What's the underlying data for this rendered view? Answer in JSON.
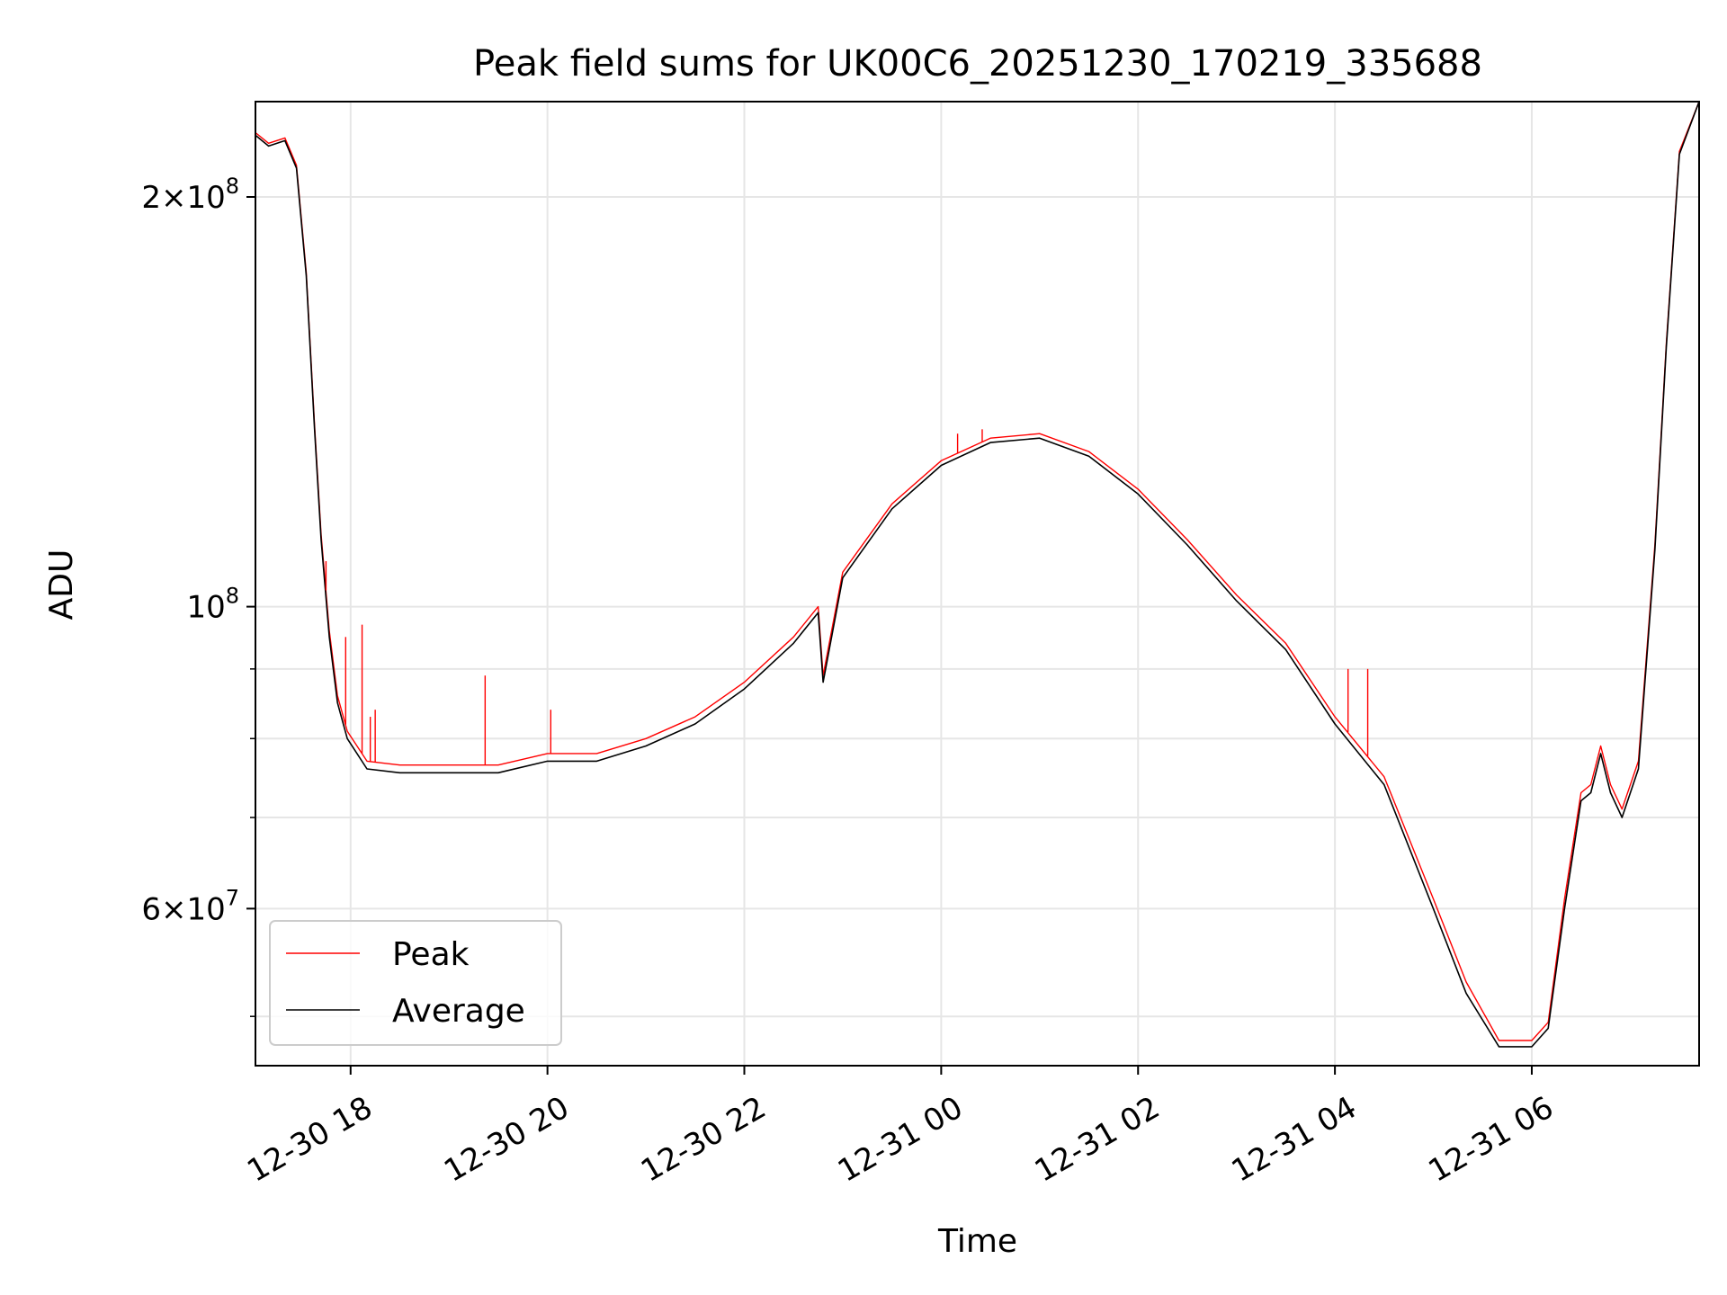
{
  "chart_data": {
    "type": "line",
    "title": "Peak field sums for UK00C6_20251230_170219_335688",
    "xlabel": "Time",
    "ylabel": "ADU",
    "yscale": "log",
    "xlim": [
      "2025-12-30 17:02",
      "2025-12-31 07:42"
    ],
    "ylim": [
      46000000,
      235000000
    ],
    "grid": true,
    "legend_position": "lower-left",
    "x_ticks": [
      {
        "value": "2025-12-30 18:00",
        "label": "12-30 18"
      },
      {
        "value": "2025-12-30 20:00",
        "label": "12-30 20"
      },
      {
        "value": "2025-12-30 22:00",
        "label": "12-30 22"
      },
      {
        "value": "2025-12-31 00:00",
        "label": "12-31 00"
      },
      {
        "value": "2025-12-31 02:00",
        "label": "12-31 02"
      },
      {
        "value": "2025-12-31 04:00",
        "label": "12-31 04"
      },
      {
        "value": "2025-12-31 06:00",
        "label": "12-31 06"
      }
    ],
    "y_ticks": [
      {
        "value": 60000000,
        "mantissa": "6",
        "times": "×",
        "base": "10",
        "exp": "7"
      },
      {
        "value": 100000000,
        "mantissa": "",
        "times": "",
        "base": "10",
        "exp": "8"
      },
      {
        "value": 200000000,
        "mantissa": "2",
        "times": "×",
        "base": "10",
        "exp": "8"
      }
    ],
    "y_minor_ticks": [
      50000000,
      70000000,
      80000000,
      90000000
    ],
    "series": [
      {
        "name": "Average",
        "color": "#000000",
        "x": [
          "2025-12-30 17:02",
          "2025-12-30 17:10",
          "2025-12-30 17:20",
          "2025-12-30 17:27",
          "2025-12-30 17:33",
          "2025-12-30 17:38",
          "2025-12-30 17:42",
          "2025-12-30 17:47",
          "2025-12-30 17:52",
          "2025-12-30 17:58",
          "2025-12-30 18:10",
          "2025-12-30 18:30",
          "2025-12-30 19:00",
          "2025-12-30 19:30",
          "2025-12-30 20:00",
          "2025-12-30 20:30",
          "2025-12-30 21:00",
          "2025-12-30 21:30",
          "2025-12-30 22:00",
          "2025-12-30 22:30",
          "2025-12-30 22:45",
          "2025-12-30 22:48",
          "2025-12-30 23:00",
          "2025-12-30 23:30",
          "2025-12-31 00:00",
          "2025-12-31 00:30",
          "2025-12-31 01:00",
          "2025-12-31 01:30",
          "2025-12-31 02:00",
          "2025-12-31 02:30",
          "2025-12-31 03:00",
          "2025-12-31 03:30",
          "2025-12-31 04:00",
          "2025-12-31 04:30",
          "2025-12-31 05:00",
          "2025-12-31 05:20",
          "2025-12-31 05:40",
          "2025-12-31 06:00",
          "2025-12-31 06:10",
          "2025-12-31 06:20",
          "2025-12-31 06:30",
          "2025-12-31 06:36",
          "2025-12-31 06:42",
          "2025-12-31 06:48",
          "2025-12-31 06:55",
          "2025-12-31 07:05",
          "2025-12-31 07:15",
          "2025-12-31 07:22",
          "2025-12-31 07:30",
          "2025-12-31 07:42"
        ],
        "y": [
          222000000,
          218000000,
          220000000,
          210000000,
          175000000,
          135000000,
          112000000,
          95000000,
          85000000,
          80000000,
          76000000,
          75500000,
          75500000,
          75500000,
          77000000,
          77000000,
          79000000,
          82000000,
          87000000,
          94000000,
          99000000,
          88000000,
          105000000,
          118000000,
          127000000,
          132000000,
          133000000,
          129000000,
          121000000,
          111000000,
          101000000,
          93000000,
          82000000,
          74000000,
          60000000,
          52000000,
          47500000,
          47500000,
          49000000,
          60000000,
          72000000,
          73000000,
          78000000,
          73000000,
          70000000,
          76000000,
          110000000,
          155000000,
          215000000,
          235000000
        ]
      },
      {
        "name": "Peak",
        "color": "#ff0000",
        "x": [
          "2025-12-30 17:02",
          "2025-12-30 17:10",
          "2025-12-30 17:20",
          "2025-12-30 17:27",
          "2025-12-30 17:33",
          "2025-12-30 17:38",
          "2025-12-30 17:42",
          "2025-12-30 17:47",
          "2025-12-30 17:52",
          "2025-12-30 17:58",
          "2025-12-30 18:10",
          "2025-12-30 18:30",
          "2025-12-30 19:00",
          "2025-12-30 19:30",
          "2025-12-30 20:00",
          "2025-12-30 20:30",
          "2025-12-30 21:00",
          "2025-12-30 21:30",
          "2025-12-30 22:00",
          "2025-12-30 22:30",
          "2025-12-30 22:45",
          "2025-12-30 22:48",
          "2025-12-30 23:00",
          "2025-12-30 23:30",
          "2025-12-31 00:00",
          "2025-12-31 00:30",
          "2025-12-31 01:00",
          "2025-12-31 01:30",
          "2025-12-31 02:00",
          "2025-12-31 02:30",
          "2025-12-31 03:00",
          "2025-12-31 03:30",
          "2025-12-31 04:00",
          "2025-12-31 04:30",
          "2025-12-31 05:00",
          "2025-12-31 05:20",
          "2025-12-31 05:40",
          "2025-12-31 06:00",
          "2025-12-31 06:10",
          "2025-12-31 06:20",
          "2025-12-31 06:30",
          "2025-12-31 06:36",
          "2025-12-31 06:42",
          "2025-12-31 06:48",
          "2025-12-31 06:55",
          "2025-12-31 07:05",
          "2025-12-31 07:15",
          "2025-12-31 07:22",
          "2025-12-31 07:30",
          "2025-12-31 07:42"
        ],
        "y": [
          223000000,
          219000000,
          221000000,
          211000000,
          176000000,
          136000000,
          113000000,
          96000000,
          86000000,
          81000000,
          77000000,
          76500000,
          76500000,
          76500000,
          78000000,
          78000000,
          80000000,
          83000000,
          88000000,
          95000000,
          100000000,
          89000000,
          106000000,
          119000000,
          128000000,
          133000000,
          134000000,
          130000000,
          122000000,
          112000000,
          102000000,
          94000000,
          83000000,
          75000000,
          61000000,
          53000000,
          48000000,
          48000000,
          49500000,
          61000000,
          73000000,
          74000000,
          79000000,
          74000000,
          71000000,
          77000000,
          111000000,
          156000000,
          216000000,
          235000000
        ]
      }
    ],
    "spikes": [
      {
        "series": "Peak",
        "x": "2025-12-30 17:45",
        "y": 108000000
      },
      {
        "series": "Peak",
        "x": "2025-12-30 17:57",
        "y": 95000000
      },
      {
        "series": "Peak",
        "x": "2025-12-30 18:07",
        "y": 97000000
      },
      {
        "series": "Peak",
        "x": "2025-12-30 18:12",
        "y": 83000000
      },
      {
        "series": "Peak",
        "x": "2025-12-30 18:15",
        "y": 84000000
      },
      {
        "series": "Peak",
        "x": "2025-12-30 19:22",
        "y": 89000000
      },
      {
        "series": "Peak",
        "x": "2025-12-30 20:02",
        "y": 84000000
      },
      {
        "series": "Peak",
        "x": "2025-12-31 00:10",
        "y": 134000000
      },
      {
        "series": "Peak",
        "x": "2025-12-31 00:25",
        "y": 135000000
      },
      {
        "series": "Peak",
        "x": "2025-12-31 04:08",
        "y": 90000000
      },
      {
        "series": "Peak",
        "x": "2025-12-31 04:20",
        "y": 90000000
      }
    ]
  }
}
